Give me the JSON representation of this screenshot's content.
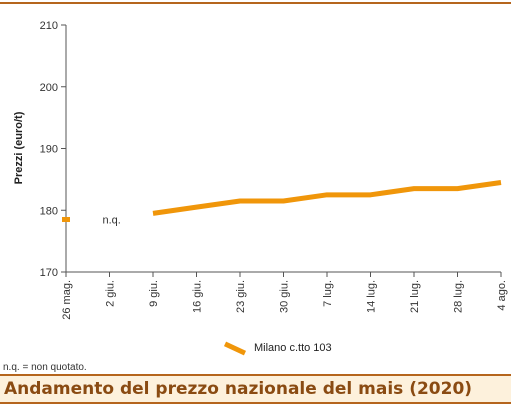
{
  "title": "Andamento del prezzo nazionale del mais (2020)",
  "footnote": "n.q. = non quotato.",
  "colors": {
    "series": "#f0960a",
    "accent": "#b5651d",
    "title_bg": "#fdf1dc",
    "title_text": "#8a4b12",
    "axis": "#555555"
  },
  "chart_data": {
    "type": "line",
    "ylabel": "Prezzi (euro/t)",
    "ylim": [
      170,
      210
    ],
    "yticks": [
      170,
      180,
      190,
      200,
      210
    ],
    "categories": [
      "26 mag.",
      "2 giu.",
      "9 giu.",
      "16 giu.",
      "23 giu.",
      "30 giu.",
      "7 lug.",
      "14 lug.",
      "21 lug.",
      "28 lug.",
      "4 ago."
    ],
    "grid": false,
    "legend_position": "bottom",
    "series": [
      {
        "name": "Milano  c.tto 103",
        "values": [
          178.5,
          null,
          179.5,
          180.5,
          181.5,
          181.5,
          182.5,
          182.5,
          183.5,
          183.5,
          184.5
        ]
      }
    ],
    "annotations": [
      {
        "category": "2 giu.",
        "text": "n.q."
      }
    ]
  }
}
